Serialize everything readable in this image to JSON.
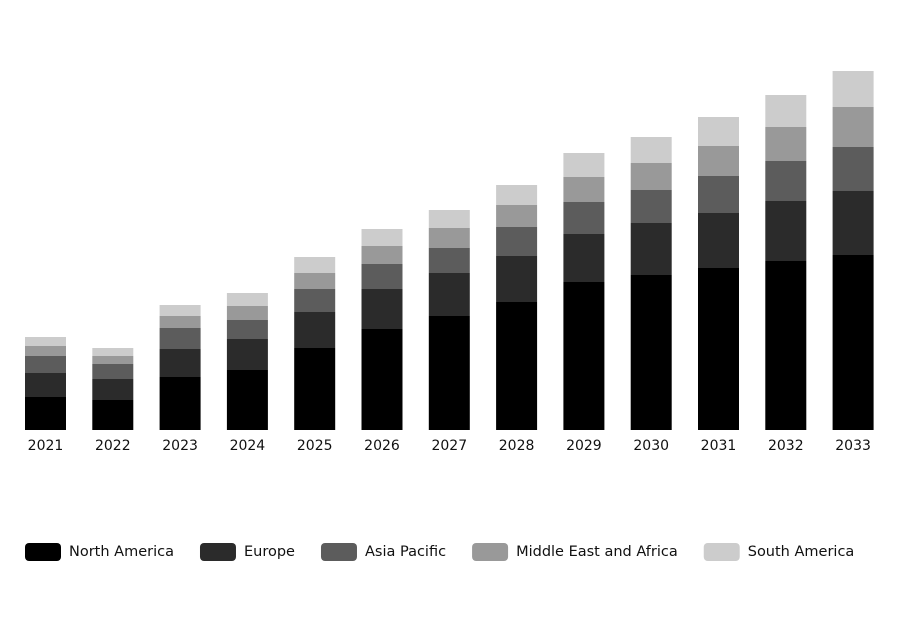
{
  "chart_data": {
    "type": "stacked-bar",
    "categories": [
      "2021",
      "2022",
      "2023",
      "2024",
      "2025",
      "2026",
      "2027",
      "2028",
      "2029",
      "2030",
      "2031",
      "2032",
      "2033"
    ],
    "series": [
      {
        "name": "North America",
        "color": "#000000",
        "values": [
          33,
          30,
          53,
          60,
          82,
          101,
          114,
          128,
          148,
          155,
          162,
          169,
          175
        ]
      },
      {
        "name": "Europe",
        "color": "#2b2b2b",
        "values": [
          24,
          21,
          28,
          31,
          36,
          40,
          43,
          46,
          48,
          52,
          55,
          60,
          64
        ]
      },
      {
        "name": "Asia Pacific",
        "color": "#5c5c5c",
        "values": [
          17,
          15,
          21,
          19,
          23,
          25,
          25,
          29,
          32,
          33,
          37,
          40,
          44
        ]
      },
      {
        "name": "Middle East and Africa",
        "color": "#999999",
        "values": [
          10,
          8,
          12,
          14,
          16,
          18,
          20,
          22,
          25,
          27,
          30,
          34,
          40
        ]
      },
      {
        "name": "South America",
        "color": "#cccccc",
        "values": [
          9,
          8,
          11,
          13,
          16,
          17,
          18,
          20,
          24,
          26,
          29,
          32,
          36
        ]
      }
    ],
    "ylim": [
      0,
      360
    ],
    "legend": "bottom"
  }
}
